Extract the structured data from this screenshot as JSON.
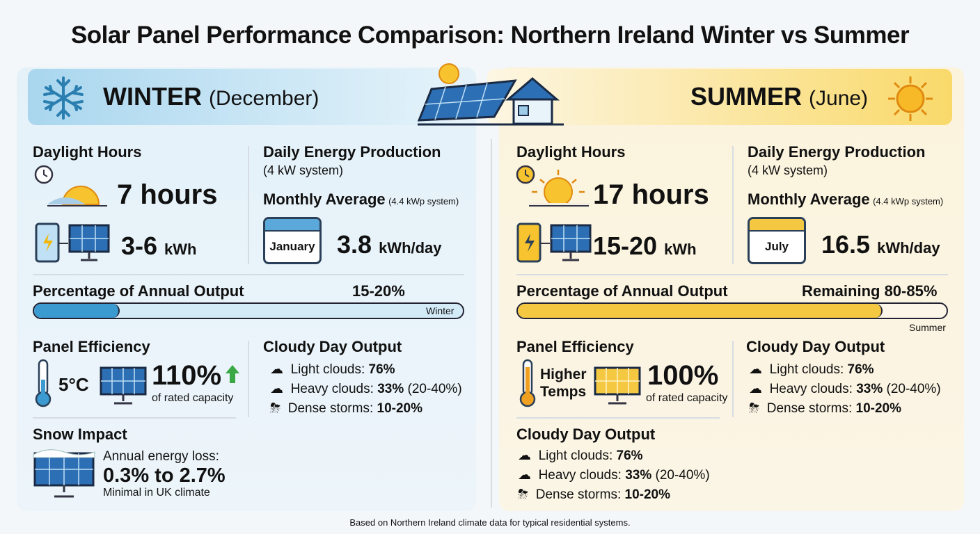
{
  "title": "Solar Panel Performance Comparison: Northern Ireland Winter vs Summer",
  "footer": "Based on Northern Ireland climate data for typical residential systems.",
  "winter": {
    "season": "WINTER",
    "month": "(December)",
    "daylight_label": "Daylight Hours",
    "daylight_value": "7 hours",
    "daily_range": "3-6",
    "daily_unit": "kWh",
    "daily_label": "Daily Energy Production",
    "daily_system": "(4 kW system)",
    "monthly_label": "Monthly Average",
    "monthly_system": "(4.4 kWp system)",
    "calendar_month": "January",
    "monthly_value": "3.8",
    "monthly_unit": "kWh/day",
    "annual_label": "Percentage of Annual Output",
    "annual_value": "15-20%",
    "annual_fill_percent": 20,
    "bar_label": "Winter",
    "efficiency_label": "Panel Efficiency",
    "temp": "5°C",
    "efficiency_value": "110%",
    "efficiency_note": "of rated capacity",
    "cloudy_label": "Cloudy Day Output",
    "clouds": [
      {
        "label": "Light clouds:",
        "value": "76%",
        "extra": ""
      },
      {
        "label": "Heavy clouds:",
        "value": "33%",
        "extra": "(20-40%)"
      },
      {
        "label": "Dense storms:",
        "value": "10-20%",
        "extra": ""
      }
    ],
    "snow_label": "Snow Impact",
    "snow_loss_label": "Annual energy loss:",
    "snow_loss_value": "0.3% to 2.7%",
    "snow_note": "Minimal in UK climate",
    "color": "#3b9ad0"
  },
  "summer": {
    "season": "SUMMER",
    "month": "(June)",
    "daylight_label": "Daylight Hours",
    "daylight_value": "17 hours",
    "daily_range": "15-20",
    "daily_unit": "kWh",
    "daily_label": "Daily Energy Production",
    "daily_system": "(4 kW system)",
    "monthly_label": "Monthly Average",
    "monthly_system": "(4.4 kWp system)",
    "calendar_month": "July",
    "monthly_value": "16.5",
    "monthly_unit": "kWh/day",
    "annual_label": "Percentage of Annual Output",
    "annual_value": "Remaining 80-85%",
    "annual_fill_percent": 85,
    "bar_label": "Summer",
    "efficiency_label": "Panel Efficiency",
    "temp": "Higher Temps",
    "efficiency_value": "100%",
    "efficiency_note": "of rated capacity",
    "cloudy_label": "Cloudy Day Output",
    "clouds": [
      {
        "label": "Light clouds:",
        "value": "76%",
        "extra": ""
      },
      {
        "label": "Heavy clouds:",
        "value": "33%",
        "extra": "(20-40%)"
      },
      {
        "label": "Dense storms:",
        "value": "10-20%",
        "extra": ""
      }
    ],
    "cloudy_label_2": "Cloudy Day Output",
    "color": "#f5c842"
  }
}
